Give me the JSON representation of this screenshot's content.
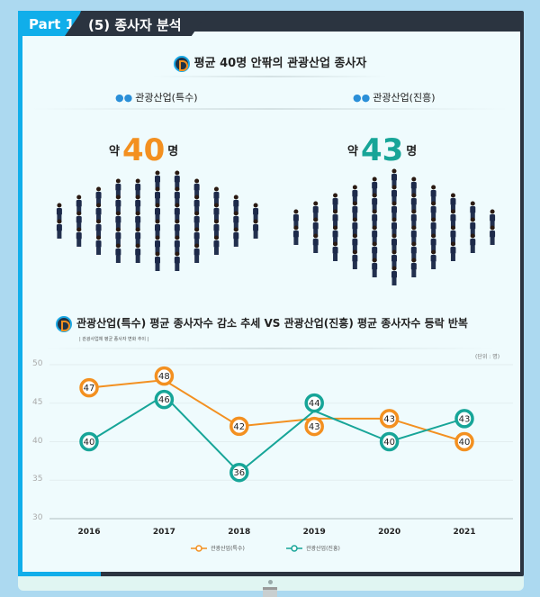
{
  "header": {
    "part_label": "Part 1",
    "section_title": "(5) 종사자 분석"
  },
  "summary": {
    "title": "평균 40명 안팎의 관광산업 종사자",
    "groups": [
      {
        "label": "관광산업(특수)",
        "prefix": "약",
        "value": "40",
        "suffix": "명",
        "color": "#f39020",
        "icon": "people-icon"
      },
      {
        "label": "관광산업(진흥)",
        "prefix": "약",
        "value": "43",
        "suffix": "명",
        "color": "#17a598",
        "icon": "people-icon"
      }
    ]
  },
  "chart_data": {
    "type": "line",
    "title": "관광산업(특수) 평균 종사자수 감소 추세 VS 관광산업(진흥) 평균 종사자수 등락 반복",
    "subtitle": "| 관광사업체 평균 종사자 변화 추이 |",
    "unit": "(단위 : 명)",
    "categories": [
      "2016",
      "2017",
      "2018",
      "2019",
      "2020",
      "2021"
    ],
    "yticks": [
      "50",
      "45",
      "40",
      "35",
      "30"
    ],
    "ylim": [
      30,
      50
    ],
    "series": [
      {
        "name": "관광산업(특수)",
        "color": "#f39020",
        "values": [
          47,
          48,
          42,
          43,
          43,
          40
        ]
      },
      {
        "name": "관광산업(진흥)",
        "color": "#17a598",
        "values": [
          40,
          46,
          36,
          44,
          40,
          43
        ]
      }
    ],
    "legend": "bottom-center"
  }
}
